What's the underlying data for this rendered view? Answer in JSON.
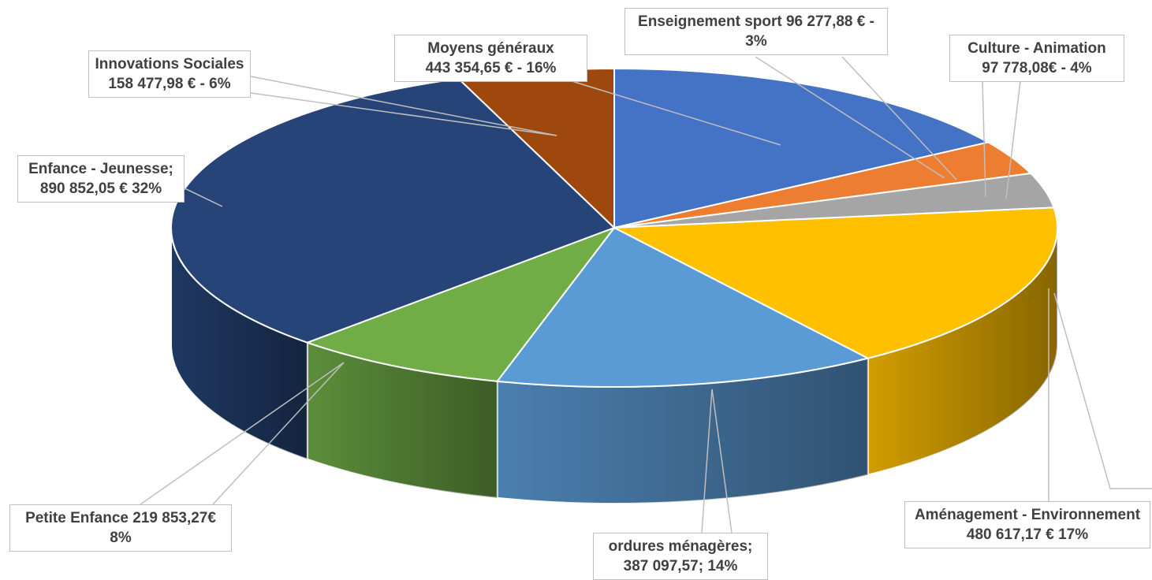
{
  "chart_data": {
    "type": "pie",
    "three_d": true,
    "title": "",
    "legend": "none",
    "slices": [
      {
        "name": "Moyens généraux",
        "value": 443354.65,
        "label_line1": "Moyens généraux",
        "label_line2": "443 354,65 € -  16%",
        "color": "#4472C4"
      },
      {
        "name": "Enseignement sport",
        "value": 96277.88,
        "label_line1": "Enseignement sport 96 277,88 € -",
        "label_line2": "3%",
        "color": "#ED7D31"
      },
      {
        "name": "Culture - Animation",
        "value": 97778.08,
        "label_line1": "Culture - Animation",
        "label_line2": "97 778,08€ - 4%",
        "color": "#A5A5A5"
      },
      {
        "name": "Aménagement - Environnement",
        "value": 480617.17,
        "label_line1": "Aménagement - Environnement",
        "label_line2": "480 617,17 €  17%",
        "color": "#FFC000"
      },
      {
        "name": "ordures ménagères",
        "value": 387097.57,
        "label_line1": "ordures ménagères;",
        "label_line2": "387 097,57; 14%",
        "color": "#5B9BD5"
      },
      {
        "name": "Petite Enfance",
        "value": 219853.27,
        "label_line1": "Petite Enfance 219 853,27€",
        "label_line2": "8%",
        "color": "#70AD47"
      },
      {
        "name": "Enfance - Jeunesse",
        "value": 890852.05,
        "label_line1": "Enfance - Jeunesse;",
        "label_line2": "890 852,05 € 32%",
        "color": "#264478"
      },
      {
        "name": "Innovations Sociales",
        "value": 158477.98,
        "label_line1": "Innovations Sociales",
        "label_line2": "158 477,98 € -  6%",
        "color": "#9E480E"
      }
    ]
  }
}
